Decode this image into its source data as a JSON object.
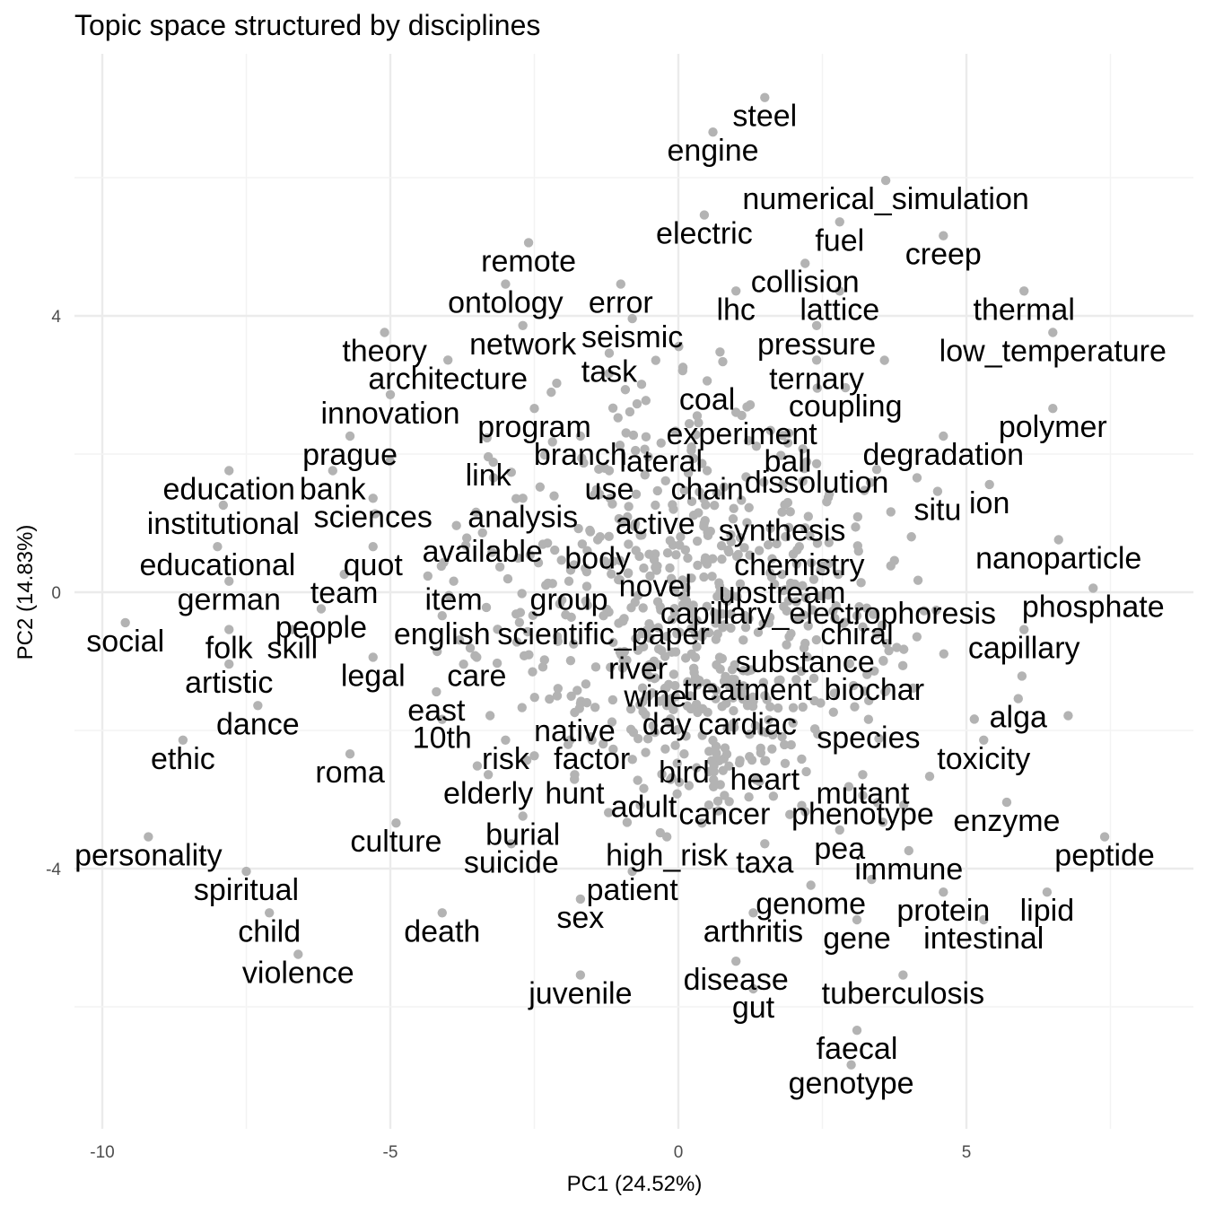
{
  "chart_data": {
    "type": "scatter",
    "title": "Topic space structured by disciplines",
    "xlabel": "PC1 (24.52%)",
    "ylabel": "PC2 (14.83%)",
    "xlim": [
      -10.5,
      8.8
    ],
    "ylim": [
      -7.5,
      7.5
    ],
    "xticks": [
      -10,
      -5,
      0,
      5
    ],
    "yticks": [
      -4,
      0,
      4
    ],
    "grid": true,
    "point_color": "#b3b3b3",
    "labeled_points": [
      {
        "label": "steel",
        "x": 1.5,
        "y": 6.9
      },
      {
        "label": "engine",
        "x": 0.6,
        "y": 6.4
      },
      {
        "label": "numerical_simulation",
        "x": 3.6,
        "y": 5.7
      },
      {
        "label": "electric",
        "x": 0.45,
        "y": 5.2
      },
      {
        "label": "fuel",
        "x": 2.8,
        "y": 5.1
      },
      {
        "label": "creep",
        "x": 4.6,
        "y": 4.9
      },
      {
        "label": "remote",
        "x": -2.6,
        "y": 4.8
      },
      {
        "label": "collision",
        "x": 2.2,
        "y": 4.5
      },
      {
        "label": "ontology",
        "x": -3.0,
        "y": 4.2
      },
      {
        "label": "error",
        "x": -1.0,
        "y": 4.2
      },
      {
        "label": "lhc",
        "x": 1.0,
        "y": 4.1
      },
      {
        "label": "lattice",
        "x": 2.8,
        "y": 4.1
      },
      {
        "label": "thermal",
        "x": 6.0,
        "y": 4.1
      },
      {
        "label": "seismic",
        "x": -0.8,
        "y": 3.7
      },
      {
        "label": "network",
        "x": -2.7,
        "y": 3.6
      },
      {
        "label": "theory",
        "x": -5.1,
        "y": 3.5
      },
      {
        "label": "pressure",
        "x": 2.4,
        "y": 3.6
      },
      {
        "label": "low_temperature",
        "x": 6.5,
        "y": 3.5
      },
      {
        "label": "task",
        "x": -1.2,
        "y": 3.2
      },
      {
        "label": "architecture",
        "x": -4.0,
        "y": 3.1
      },
      {
        "label": "ternary",
        "x": 2.4,
        "y": 3.1
      },
      {
        "label": "coal",
        "x": 0.5,
        "y": 2.8
      },
      {
        "label": "coupling",
        "x": 2.9,
        "y": 2.7
      },
      {
        "label": "innovation",
        "x": -5.0,
        "y": 2.6
      },
      {
        "label": "program",
        "x": -2.5,
        "y": 2.4
      },
      {
        "label": "experiment",
        "x": 1.1,
        "y": 2.3
      },
      {
        "label": "polymer",
        "x": 6.5,
        "y": 2.4
      },
      {
        "label": "prague",
        "x": -5.7,
        "y": 2.0
      },
      {
        "label": "branch",
        "x": -1.7,
        "y": 2.0
      },
      {
        "label": "lateral",
        "x": -0.3,
        "y": 1.9
      },
      {
        "label": "ball",
        "x": 1.9,
        "y": 1.9
      },
      {
        "label": "degradation",
        "x": 4.6,
        "y": 2.0
      },
      {
        "label": "link",
        "x": -3.3,
        "y": 1.7
      },
      {
        "label": "education",
        "x": -7.8,
        "y": 1.5
      },
      {
        "label": "bank",
        "x": -6.0,
        "y": 1.5
      },
      {
        "label": "use",
        "x": -1.2,
        "y": 1.5
      },
      {
        "label": "chain",
        "x": 0.5,
        "y": 1.5
      },
      {
        "label": "dissolution",
        "x": 2.4,
        "y": 1.6
      },
      {
        "label": "ion",
        "x": 5.4,
        "y": 1.3
      },
      {
        "label": "situ",
        "x": 4.5,
        "y": 1.2
      },
      {
        "label": "institutional",
        "x": -7.9,
        "y": 1.0
      },
      {
        "label": "sciences",
        "x": -5.3,
        "y": 1.1
      },
      {
        "label": "analysis",
        "x": -2.7,
        "y": 1.1
      },
      {
        "label": "active",
        "x": -0.4,
        "y": 1.0
      },
      {
        "label": "synthesis",
        "x": 1.8,
        "y": 0.9
      },
      {
        "label": "available",
        "x": -3.4,
        "y": 0.6
      },
      {
        "label": "educational",
        "x": -8.0,
        "y": 0.4
      },
      {
        "label": "quot",
        "x": -5.3,
        "y": 0.4
      },
      {
        "label": "body",
        "x": -1.4,
        "y": 0.5
      },
      {
        "label": "chemistry",
        "x": 2.1,
        "y": 0.4
      },
      {
        "label": "nanoparticle",
        "x": 6.6,
        "y": 0.5
      },
      {
        "label": "german",
        "x": -7.8,
        "y": -0.1
      },
      {
        "label": "team",
        "x": -5.8,
        "y": 0.0
      },
      {
        "label": "item",
        "x": -3.9,
        "y": -0.1
      },
      {
        "label": "group",
        "x": -1.9,
        "y": -0.1
      },
      {
        "label": "novel",
        "x": -0.4,
        "y": 0.1
      },
      {
        "label": "upstream",
        "x": 1.8,
        "y": 0.0
      },
      {
        "label": "phosphate",
        "x": 7.2,
        "y": -0.2
      },
      {
        "label": "capillary_electrophoresis",
        "x": 2.6,
        "y": -0.3
      },
      {
        "label": "people",
        "x": -6.2,
        "y": -0.5
      },
      {
        "label": "social",
        "x": -9.6,
        "y": -0.7
      },
      {
        "label": "folk",
        "x": -7.8,
        "y": -0.8
      },
      {
        "label": "skill",
        "x": -6.7,
        "y": -0.8
      },
      {
        "label": "english",
        "x": -4.1,
        "y": -0.6
      },
      {
        "label": "scientific_paper",
        "x": -1.3,
        "y": -0.6
      },
      {
        "label": "chiral",
        "x": 3.1,
        "y": -0.6
      },
      {
        "label": "capillary",
        "x": 6.0,
        "y": -0.8
      },
      {
        "label": "legal",
        "x": -5.3,
        "y": -1.2
      },
      {
        "label": "care",
        "x": -3.5,
        "y": -1.2
      },
      {
        "label": "river",
        "x": -0.7,
        "y": -1.1
      },
      {
        "label": "substance",
        "x": 2.2,
        "y": -1.0
      },
      {
        "label": "artistic",
        "x": -7.8,
        "y": -1.3
      },
      {
        "label": "wine",
        "x": -0.4,
        "y": -1.5
      },
      {
        "label": "treatment",
        "x": 1.2,
        "y": -1.4
      },
      {
        "label": "biochar",
        "x": 3.4,
        "y": -1.4
      },
      {
        "label": "east",
        "x": -4.2,
        "y": -1.7
      },
      {
        "label": "alga",
        "x": 5.9,
        "y": -1.8
      },
      {
        "label": "dance",
        "x": -7.3,
        "y": -1.9
      },
      {
        "label": "day",
        "x": -0.2,
        "y": -1.9
      },
      {
        "label": "cardiac",
        "x": 1.2,
        "y": -1.9
      },
      {
        "label": "native",
        "x": -1.8,
        "y": -2.0
      },
      {
        "label": "10th",
        "x": -4.1,
        "y": -2.1
      },
      {
        "label": "species",
        "x": 3.3,
        "y": -2.1
      },
      {
        "label": "ethic",
        "x": -8.6,
        "y": -2.4
      },
      {
        "label": "risk",
        "x": -3.0,
        "y": -2.4
      },
      {
        "label": "factor",
        "x": -1.5,
        "y": -2.4
      },
      {
        "label": "toxicity",
        "x": 5.3,
        "y": -2.4
      },
      {
        "label": "roma",
        "x": -5.7,
        "y": -2.6
      },
      {
        "label": "bird",
        "x": 0.1,
        "y": -2.6
      },
      {
        "label": "heart",
        "x": 1.5,
        "y": -2.7
      },
      {
        "label": "elderly",
        "x": -3.3,
        "y": -2.9
      },
      {
        "label": "hunt",
        "x": -1.8,
        "y": -2.9
      },
      {
        "label": "mutant",
        "x": 3.2,
        "y": -2.9
      },
      {
        "label": "adult",
        "x": -0.6,
        "y": -3.1
      },
      {
        "label": "cancer",
        "x": 0.8,
        "y": -3.2
      },
      {
        "label": "phenotype",
        "x": 3.2,
        "y": -3.2
      },
      {
        "label": "enzyme",
        "x": 5.7,
        "y": -3.3
      },
      {
        "label": "culture",
        "x": -4.9,
        "y": -3.6
      },
      {
        "label": "burial",
        "x": -2.7,
        "y": -3.5
      },
      {
        "label": "pea",
        "x": 2.8,
        "y": -3.7
      },
      {
        "label": "personality",
        "x": -9.2,
        "y": -3.8
      },
      {
        "label": "suicide",
        "x": -2.9,
        "y": -3.9
      },
      {
        "label": "high_risk",
        "x": -0.2,
        "y": -3.8
      },
      {
        "label": "taxa",
        "x": 1.5,
        "y": -3.9
      },
      {
        "label": "immune",
        "x": 4.0,
        "y": -4.0
      },
      {
        "label": "peptide",
        "x": 7.4,
        "y": -3.8
      },
      {
        "label": "spiritual",
        "x": -7.5,
        "y": -4.3
      },
      {
        "label": "patient",
        "x": -0.8,
        "y": -4.3
      },
      {
        "label": "genome",
        "x": 2.3,
        "y": -4.5
      },
      {
        "label": "protein",
        "x": 4.6,
        "y": -4.6
      },
      {
        "label": "lipid",
        "x": 6.4,
        "y": -4.6
      },
      {
        "label": "sex",
        "x": -1.7,
        "y": -4.7
      },
      {
        "label": "child",
        "x": -7.1,
        "y": -4.9
      },
      {
        "label": "death",
        "x": -4.1,
        "y": -4.9
      },
      {
        "label": "arthritis",
        "x": 1.3,
        "y": -4.9
      },
      {
        "label": "gene",
        "x": 3.1,
        "y": -5.0
      },
      {
        "label": "intestinal",
        "x": 5.3,
        "y": -5.0
      },
      {
        "label": "violence",
        "x": -6.6,
        "y": -5.5
      },
      {
        "label": "disease",
        "x": 1.0,
        "y": -5.6
      },
      {
        "label": "juvenile",
        "x": -1.7,
        "y": -5.8
      },
      {
        "label": "tuberculosis",
        "x": 3.9,
        "y": -5.8
      },
      {
        "label": "gut",
        "x": 1.3,
        "y": -6.0
      },
      {
        "label": "faecal",
        "x": 3.1,
        "y": -6.6
      },
      {
        "label": "genotype",
        "x": 3.0,
        "y": -7.1
      }
    ]
  }
}
